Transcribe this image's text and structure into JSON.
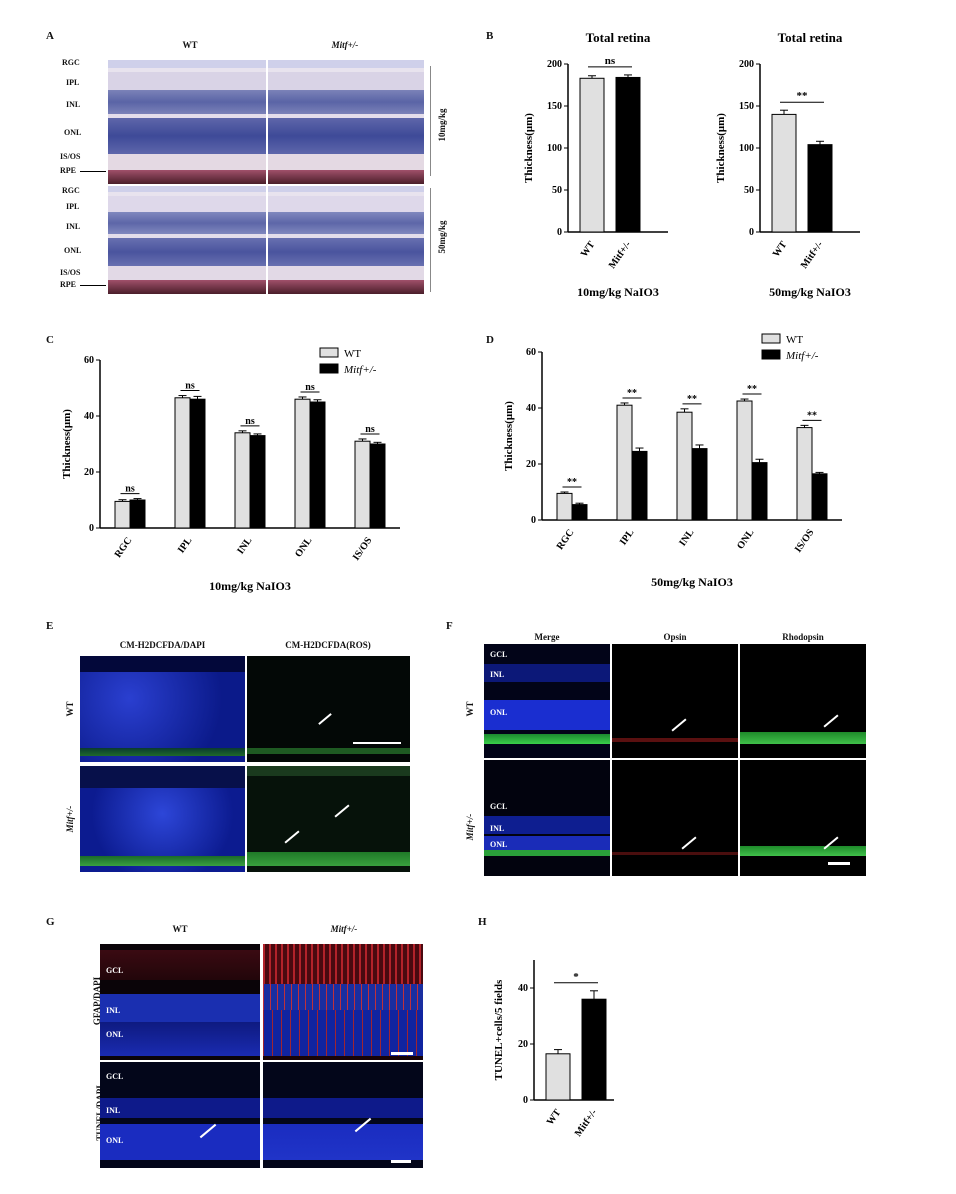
{
  "panel_labels": {
    "a": "A",
    "b": "B",
    "c": "C",
    "d": "D",
    "e": "E",
    "f": "F",
    "g": "G",
    "h": "H"
  },
  "panel_a": {
    "col_wt": "WT",
    "col_mitf": "Mitf+/-",
    "row1_dose": "10mg/kg",
    "row2_dose": "50mg/kg",
    "layers": [
      "RGC",
      "IPL",
      "INL",
      "ONL",
      "IS/OS",
      "RPE"
    ]
  },
  "panel_e": {
    "col1": "CM-H2DCFDA/DAPI",
    "col2": "CM-H2DCFDA(ROS)",
    "row1": "WT",
    "row2": "Mitf+/-"
  },
  "panel_f": {
    "col1": "Merge",
    "col2": "Opsin",
    "col3": "Rhodopsin",
    "row1": "WT",
    "row2": "Mitf+/-",
    "layers": [
      "GCL",
      "INL",
      "ONL"
    ]
  },
  "panel_g": {
    "col1": "WT",
    "col2": "Mitf+/-",
    "row1": "GFAP/DAPI",
    "row2": "TUNEL/DAPI",
    "layers": [
      "GCL",
      "INL",
      "ONL"
    ]
  },
  "chart_data": [
    {
      "panel": "B-left",
      "type": "bar",
      "title": "Total retina",
      "xlabel": "10mg/kg  NaIO3",
      "ylabel": "Thickness(μm)",
      "ylim": [
        0,
        200
      ],
      "yticks": [
        "0",
        "50",
        "100",
        "150",
        "200"
      ],
      "categories": [
        "WT",
        "Mitf+/-"
      ],
      "values": [
        183,
        184
      ],
      "errors": [
        3,
        3
      ],
      "colors": [
        "#e0e0e0",
        "#000000"
      ],
      "significance": "ns"
    },
    {
      "panel": "B-right",
      "type": "bar",
      "title": "Total retina",
      "xlabel": "50mg/kg  NaIO3",
      "ylabel": "Thickness(μm)",
      "ylim": [
        0,
        200
      ],
      "yticks": [
        "0",
        "50",
        "100",
        "150",
        "200"
      ],
      "categories": [
        "WT",
        "Mitf+/-"
      ],
      "values": [
        140,
        104
      ],
      "errors": [
        5,
        4
      ],
      "colors": [
        "#e0e0e0",
        "#000000"
      ],
      "significance": "**"
    },
    {
      "panel": "C",
      "type": "bar",
      "xlabel": "10mg/kg  NaIO3",
      "ylabel": "Thickness(μm)",
      "ylim": [
        0,
        60
      ],
      "yticks": [
        "0",
        "20",
        "40",
        "60"
      ],
      "categories": [
        "RGC",
        "IPL",
        "INL",
        "ONL",
        "IS/OS"
      ],
      "series": [
        {
          "name": "WT",
          "values": [
            9.5,
            46.5,
            34,
            46,
            31
          ],
          "errors": [
            0.6,
            0.8,
            0.7,
            0.8,
            0.8
          ],
          "color": "#e0e0e0"
        },
        {
          "name": "Mitf+/-",
          "values": [
            10,
            46,
            33,
            45,
            30
          ],
          "errors": [
            0.5,
            1.0,
            0.6,
            0.8,
            0.6
          ],
          "color": "#000000"
        }
      ],
      "significance": [
        "ns",
        "ns",
        "ns",
        "ns",
        "ns"
      ],
      "legend": "top-right"
    },
    {
      "panel": "D",
      "type": "bar",
      "xlabel": "50mg/kg  NaIO3",
      "ylabel": "Thickness(μm)",
      "ylim": [
        0,
        60
      ],
      "yticks": [
        "0",
        "20",
        "40",
        "60"
      ],
      "categories": [
        "RGC",
        "IPL",
        "INL",
        "ONL",
        "IS/OS"
      ],
      "series": [
        {
          "name": "WT",
          "values": [
            9.5,
            41,
            38.5,
            42.5,
            33
          ],
          "errors": [
            0.5,
            0.8,
            1.2,
            0.7,
            0.8
          ],
          "color": "#e0e0e0"
        },
        {
          "name": "Mitf+/-",
          "values": [
            5.5,
            24.5,
            25.5,
            20.5,
            16.5
          ],
          "errors": [
            0.5,
            1.2,
            1.3,
            1.2,
            0.5
          ],
          "color": "#000000"
        }
      ],
      "significance": [
        "**",
        "**",
        "**",
        "**",
        "**"
      ],
      "legend": "top-right"
    },
    {
      "panel": "H",
      "type": "bar",
      "ylabel": "TUNEL+cells/5 fields",
      "ylim": [
        0,
        50
      ],
      "yticks": [
        "0",
        "20",
        "40"
      ],
      "categories": [
        "WT",
        "Mitf+/-"
      ],
      "values": [
        16.5,
        36
      ],
      "errors": [
        1.5,
        3
      ],
      "colors": [
        "#e0e0e0",
        "#000000"
      ],
      "significance": "*"
    }
  ]
}
